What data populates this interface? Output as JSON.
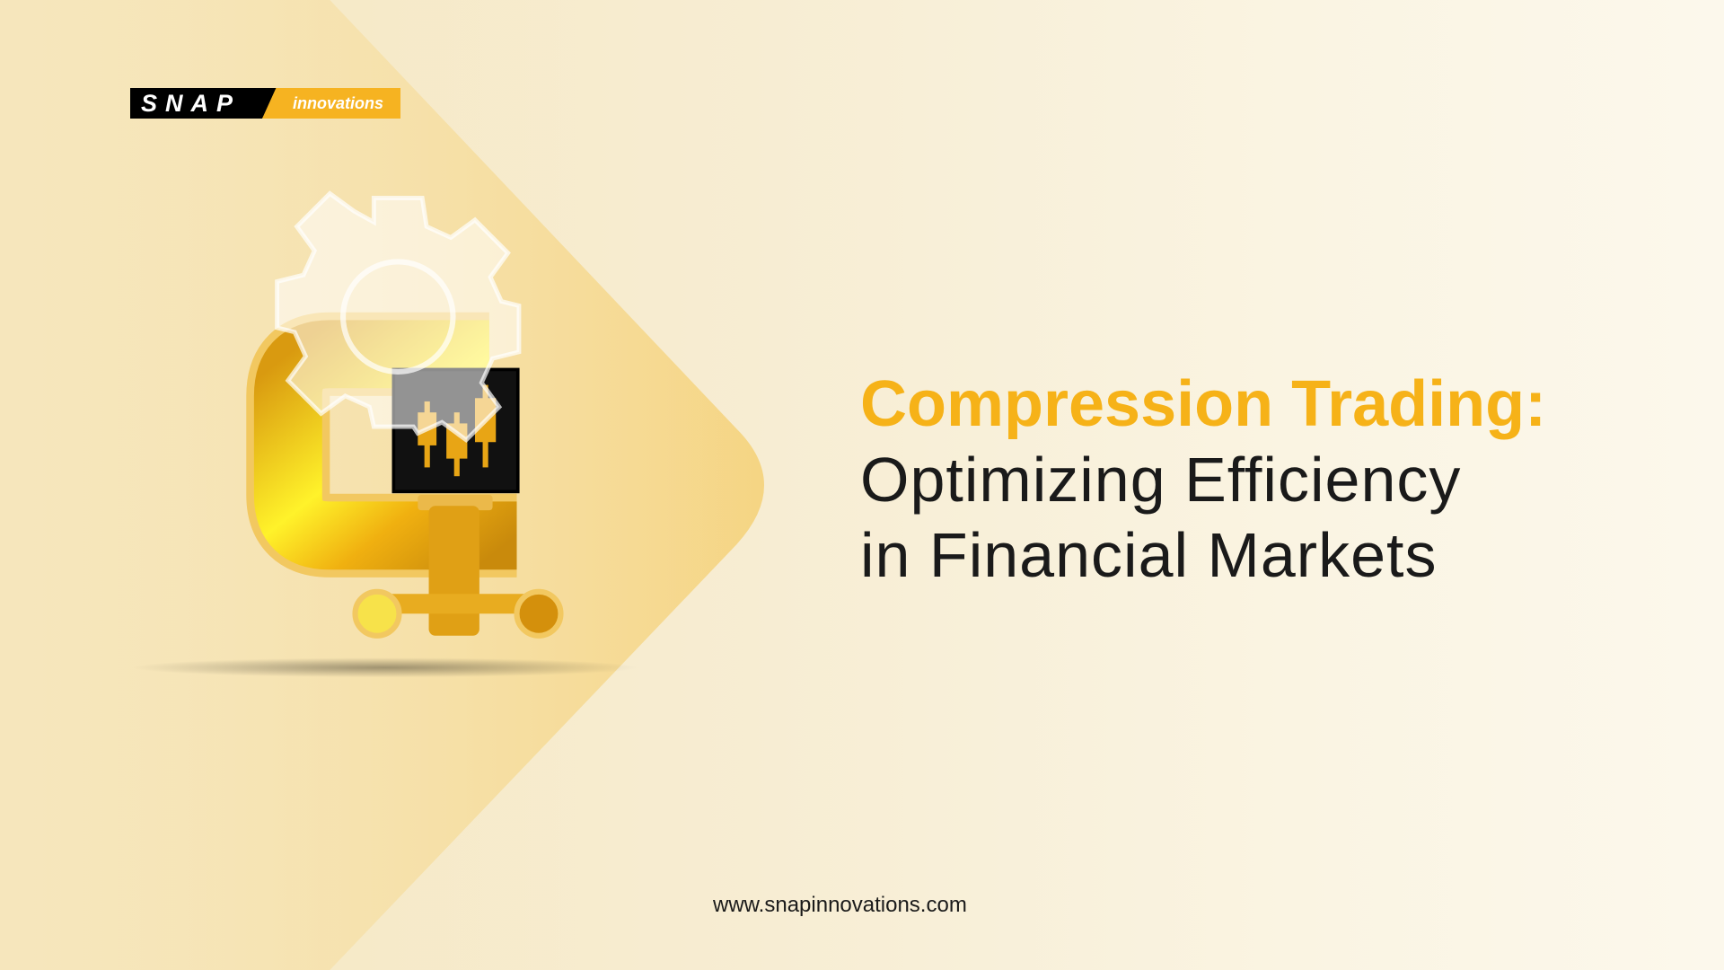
{
  "logo": {
    "snap": "SNAP",
    "innovations": "innovations"
  },
  "headline": {
    "line1": "Compression Trading:",
    "line2": "Optimizing Efficiency",
    "line3": "in Financial Markets"
  },
  "website": "www.snapinnovations.com",
  "colors": {
    "accent": "#f6b218",
    "text": "#1a1a1a",
    "background": "#f7edd3"
  },
  "illustration": {
    "icons": [
      "clamp-icon",
      "gear-icon",
      "candlestick-chart-icon"
    ]
  }
}
